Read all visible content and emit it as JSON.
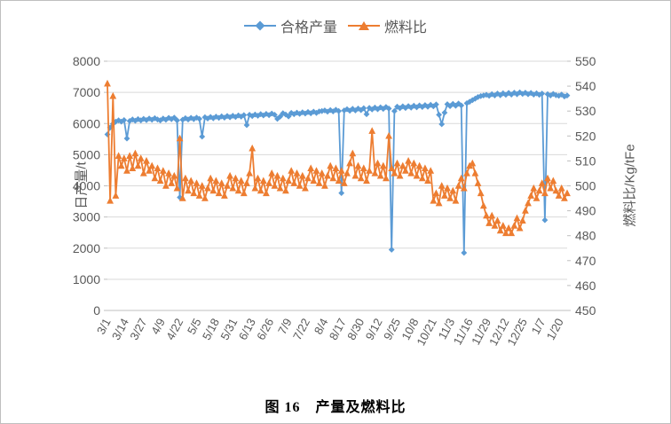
{
  "caption": {
    "text": "图 16　产量及燃料比"
  },
  "style": {
    "grid": "#D9D9D9",
    "axis_line": "#BFBFBF",
    "text": "#595959",
    "background": "#FFFFFF",
    "frame_border": "#BFBFBF"
  },
  "chart_data": {
    "type": "line",
    "dual_axis": true,
    "grid": "horizontal",
    "legend_position": "top-center",
    "x_tick_interval_days": 13,
    "x_step_days": 2,
    "x_domain": [
      0,
      330
    ],
    "x_tick_labels": [
      "3/1",
      "3/14",
      "3/27",
      "4/9",
      "4/22",
      "5/5",
      "5/18",
      "5/31",
      "6/13",
      "6/26",
      "7/9",
      "7/22",
      "8/4",
      "8/17",
      "8/30",
      "9/12",
      "9/25",
      "10/8",
      "10/21",
      "11/3",
      "11/16",
      "11/29",
      "12/12",
      "12/25",
      "1/7",
      "1/20"
    ],
    "left_axis": {
      "title": "日产量/t",
      "min": 0,
      "max": 8000,
      "ticks": [
        0,
        1000,
        2000,
        3000,
        4000,
        5000,
        6000,
        7000,
        8000
      ]
    },
    "right_axis": {
      "title": "燃料比/Kg/tFe",
      "min": 450,
      "max": 550,
      "ticks": [
        450,
        460,
        470,
        480,
        490,
        500,
        510,
        520,
        530,
        540,
        550
      ]
    },
    "series": [
      {
        "name": "合格产量",
        "axis": "left",
        "color": "#5B9BD5",
        "marker": "diamond",
        "values": [
          5650,
          5870,
          5990,
          6060,
          6100,
          6060,
          6110,
          5520,
          6080,
          6130,
          6090,
          6140,
          6100,
          6150,
          6110,
          6160,
          6120,
          6170,
          6130,
          6100,
          6160,
          6120,
          6180,
          6140,
          6190,
          6100,
          3630,
          6120,
          6170,
          6130,
          6180,
          6140,
          6190,
          6150,
          5580,
          6200,
          6160,
          6210,
          6170,
          6220,
          6180,
          6230,
          6190,
          6240,
          6200,
          6250,
          6210,
          6260,
          6220,
          6270,
          5950,
          6280,
          6240,
          6290,
          6250,
          6300,
          6260,
          6310,
          6270,
          6320,
          6280,
          6150,
          6220,
          6330,
          6290,
          6230,
          6340,
          6300,
          6350,
          6310,
          6360,
          6320,
          6370,
          6330,
          6380,
          6340,
          6390,
          6400,
          6420,
          6380,
          6430,
          6390,
          6440,
          6400,
          3770,
          6420,
          6460,
          6410,
          6470,
          6420,
          6480,
          6430,
          6490,
          6300,
          6500,
          6450,
          6510,
          6460,
          6520,
          6470,
          6530,
          6480,
          1950,
          6400,
          6540,
          6490,
          6550,
          6500,
          6560,
          6510,
          6570,
          6520,
          6580,
          6530,
          6590,
          6540,
          6600,
          6550,
          6610,
          6280,
          5980,
          6350,
          6620,
          6560,
          6630,
          6570,
          6640,
          6580,
          1850,
          6650,
          6700,
          6750,
          6800,
          6850,
          6880,
          6900,
          6920,
          6890,
          6940,
          6900,
          6960,
          6910,
          6970,
          6920,
          6980,
          6930,
          6990,
          6940,
          7000,
          6950,
          6990,
          6940,
          6980,
          6930,
          6970,
          6920,
          6960,
          2900,
          6940,
          6900,
          6950,
          6910,
          6890,
          6930,
          6870,
          6900
        ]
      },
      {
        "name": "燃料比",
        "axis": "right",
        "color": "#ED7D31",
        "marker": "triangle",
        "values": [
          541,
          494,
          536,
          496,
          512,
          508,
          511,
          506,
          512,
          507,
          513,
          508,
          511,
          505,
          510,
          506,
          508,
          503,
          507,
          502,
          506,
          500,
          505,
          501,
          504,
          499,
          519,
          495,
          503,
          498,
          502,
          497,
          501,
          496,
          500,
          495,
          499,
          503,
          498,
          502,
          497,
          501,
          496,
          500,
          504,
          499,
          503,
          498,
          502,
          497,
          501,
          505,
          515,
          499,
          503,
          498,
          502,
          497,
          501,
          505,
          500,
          504,
          499,
          503,
          498,
          502,
          506,
          501,
          505,
          500,
          504,
          499,
          503,
          507,
          502,
          506,
          501,
          505,
          500,
          504,
          508,
          503,
          507,
          502,
          506,
          501,
          505,
          509,
          513,
          504,
          508,
          503,
          507,
          502,
          506,
          522,
          505,
          509,
          504,
          508,
          503,
          520,
          507,
          505,
          509,
          504,
          508,
          506,
          510,
          505,
          509,
          504,
          508,
          503,
          507,
          502,
          506,
          494,
          497,
          493,
          500,
          496,
          499,
          495,
          498,
          494,
          500,
          503,
          499,
          505,
          508,
          509,
          505,
          501,
          497,
          492,
          488,
          485,
          488,
          484,
          486,
          482,
          484,
          481,
          483,
          481,
          484,
          487,
          483,
          486,
          490,
          493,
          496,
          499,
          495,
          498,
          501,
          497,
          503,
          499,
          502,
          498,
          496,
          499,
          495,
          497
        ]
      }
    ]
  }
}
